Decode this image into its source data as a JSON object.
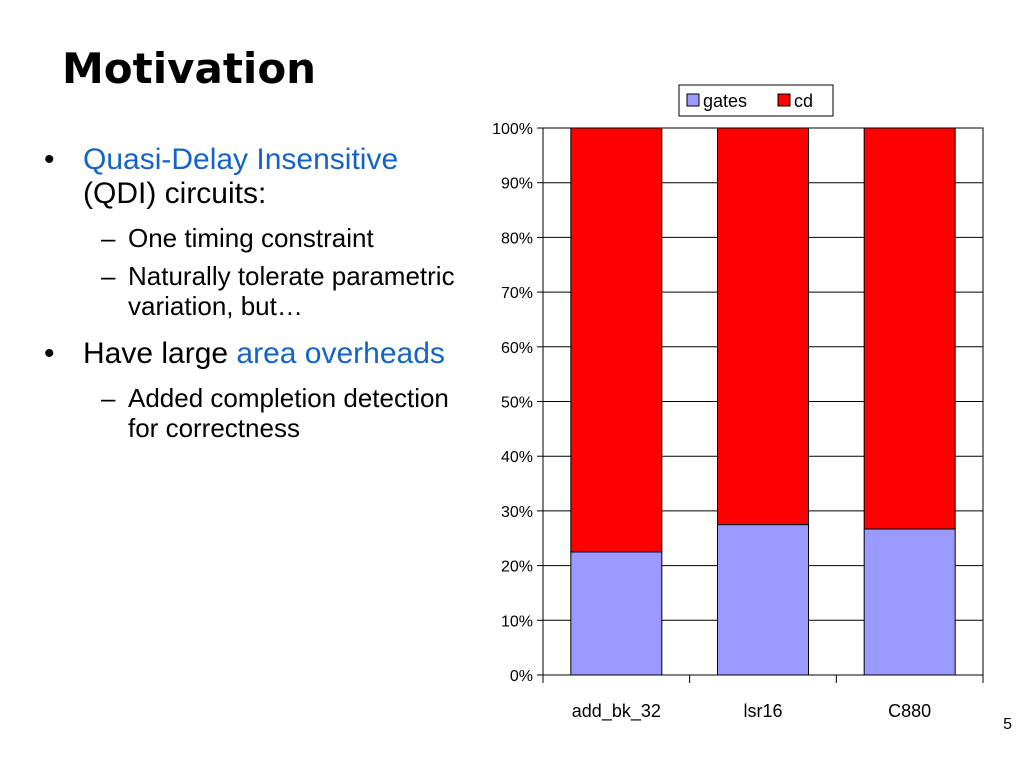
{
  "slide": {
    "title": "Motivation",
    "page_number": "5"
  },
  "bullets": [
    {
      "parts": [
        {
          "text": "Quasi-Delay Insensitive",
          "highlight": true
        },
        {
          "text": " (QDI) circuits:",
          "highlight": false
        }
      ],
      "subs": [
        "One timing constraint",
        "Naturally tolerate parametric variation, but…"
      ]
    },
    {
      "parts": [
        {
          "text": "Have large ",
          "highlight": false
        },
        {
          "text": "area overheads",
          "highlight": true
        }
      ],
      "subs": [
        "Added completion detection for correctness"
      ]
    }
  ],
  "colors": {
    "highlight": "#1464c8",
    "gates": "#9999ff",
    "cd": "#ff0000"
  },
  "chart_data": {
    "type": "bar",
    "stacked": true,
    "percent": true,
    "title": "",
    "xlabel": "",
    "ylabel": "",
    "categories": [
      "add_bk_32",
      "lsr16",
      "C880"
    ],
    "series": [
      {
        "name": "gates",
        "color": "#9999ff",
        "values": [
          22.5,
          27.5,
          26.7
        ]
      },
      {
        "name": "cd",
        "color": "#ff0000",
        "values": [
          77.5,
          72.5,
          73.3
        ]
      }
    ],
    "ylim": [
      0,
      100
    ],
    "yticks": [
      "0%",
      "10%",
      "20%",
      "30%",
      "40%",
      "50%",
      "60%",
      "70%",
      "80%",
      "90%",
      "100%"
    ],
    "grid": true,
    "legend": "top"
  }
}
